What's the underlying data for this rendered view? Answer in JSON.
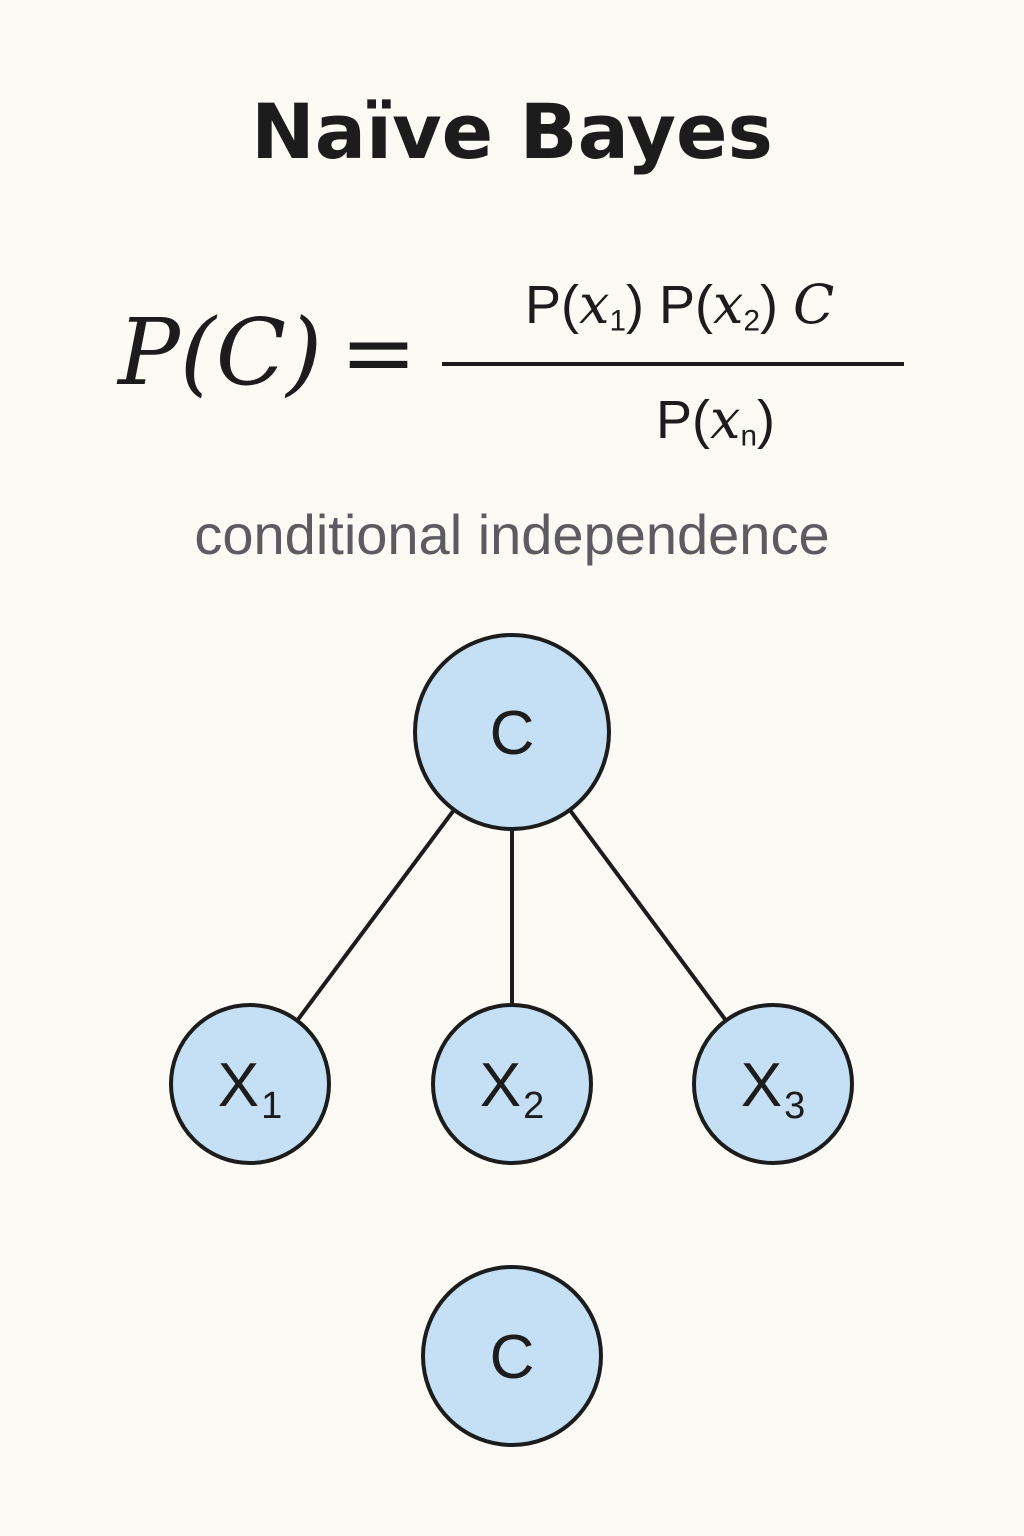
{
  "title": "Naïve Bayes",
  "formula": {
    "lhs": "P(C)",
    "equals": "=",
    "numerator": {
      "p1": "P(",
      "x1": "x",
      "x1_sub": "1",
      "close1": ")",
      "p2": "P(",
      "x2": "x",
      "x2_sub": "2",
      "close2": ")",
      "tail": "C"
    },
    "denominator": {
      "p": "P(",
      "x": "x",
      "sub": "n",
      "close": ")"
    }
  },
  "subtitle": "conditional independence",
  "diagram": {
    "colors": {
      "node_fill": "#c5dff5",
      "node_stroke": "#1c1c1c",
      "edge": "#1c1c1c"
    },
    "nodes": [
      {
        "id": "C",
        "label": "C",
        "sub": ""
      },
      {
        "id": "X1",
        "label": "X",
        "sub": "1"
      },
      {
        "id": "X2",
        "label": "X",
        "sub": "2"
      },
      {
        "id": "X3",
        "label": "X",
        "sub": "3"
      },
      {
        "id": "C2",
        "label": "C",
        "sub": ""
      }
    ],
    "edges": [
      {
        "from": "C",
        "to": "X1"
      },
      {
        "from": "C",
        "to": "X2"
      },
      {
        "from": "C",
        "to": "X3"
      }
    ]
  }
}
